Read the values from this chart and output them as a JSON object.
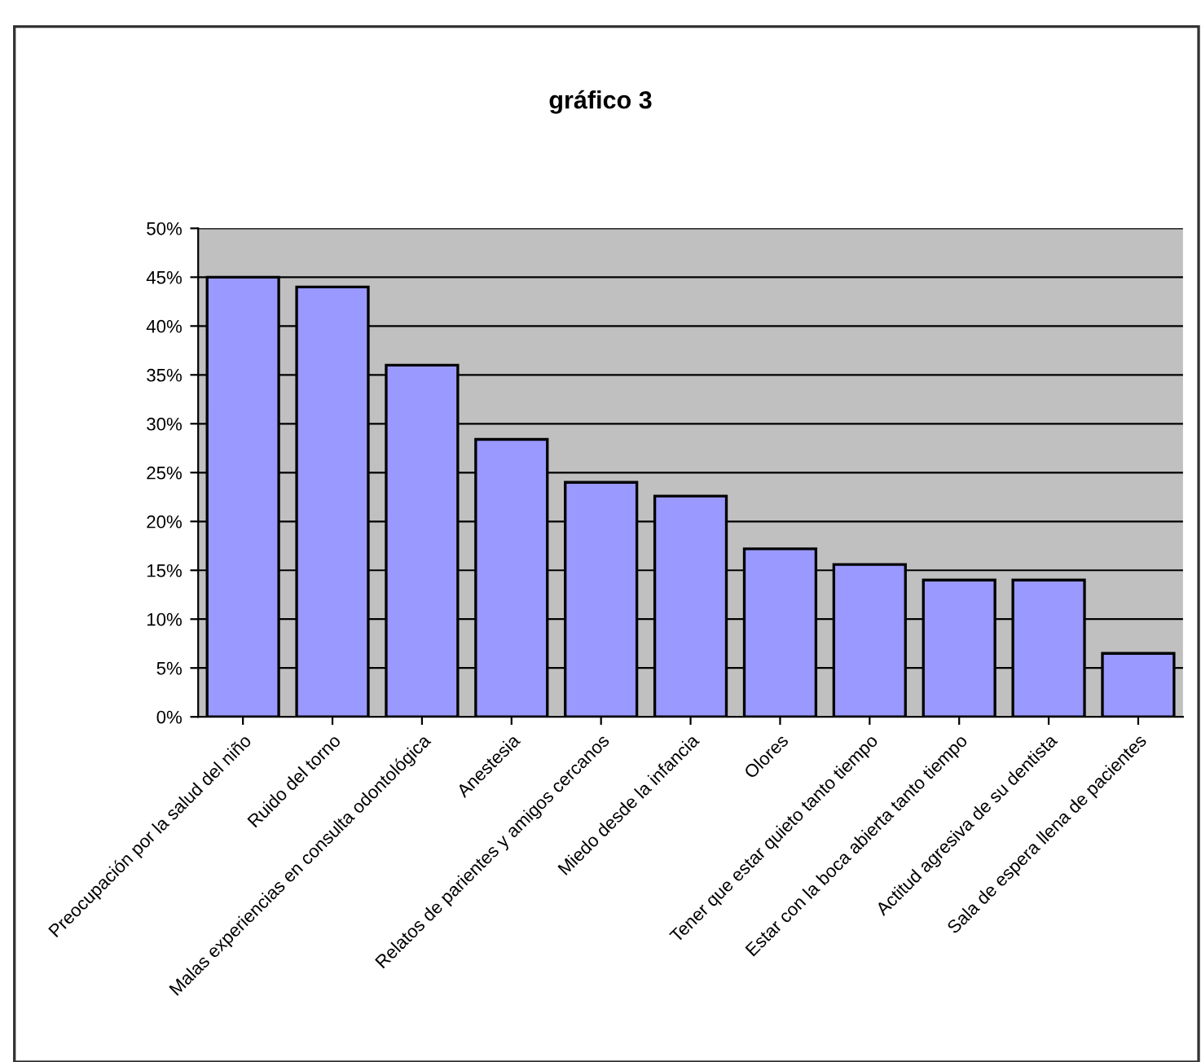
{
  "chart_data": {
    "type": "bar",
    "title": "gráfico 3",
    "categories": [
      "Preocupación por la salud del niño",
      "Ruido del torno",
      "Malas experiencias en consulta odontológica",
      "Anestesia",
      "Relatos de parientes y amigos cercanos",
      "Miedo desde la infancia",
      "Olores",
      "Tener que estar quieto tanto tiempo",
      "Estar con la boca abierta tanto tiempo",
      "Actitud agresiva de su dentista",
      "Sala de espera llena de pacientes"
    ],
    "values": [
      45,
      44,
      36,
      28.4,
      24,
      22.6,
      17.2,
      15.6,
      14,
      14,
      6.5
    ],
    "color": "#9999ff",
    "ylim": [
      0,
      50
    ],
    "yticks": [
      {
        "value": 0,
        "label": "0%"
      },
      {
        "value": 5,
        "label": "5%"
      },
      {
        "value": 10,
        "label": "10%"
      },
      {
        "value": 15,
        "label": "15%"
      },
      {
        "value": 20,
        "label": "20%"
      },
      {
        "value": 25,
        "label": "25%"
      },
      {
        "value": 30,
        "label": "30%"
      },
      {
        "value": 35,
        "label": "35%"
      },
      {
        "value": 40,
        "label": "40%"
      },
      {
        "value": 45,
        "label": "45%"
      },
      {
        "value": 50,
        "label": "50%"
      }
    ],
    "grid": "y"
  }
}
